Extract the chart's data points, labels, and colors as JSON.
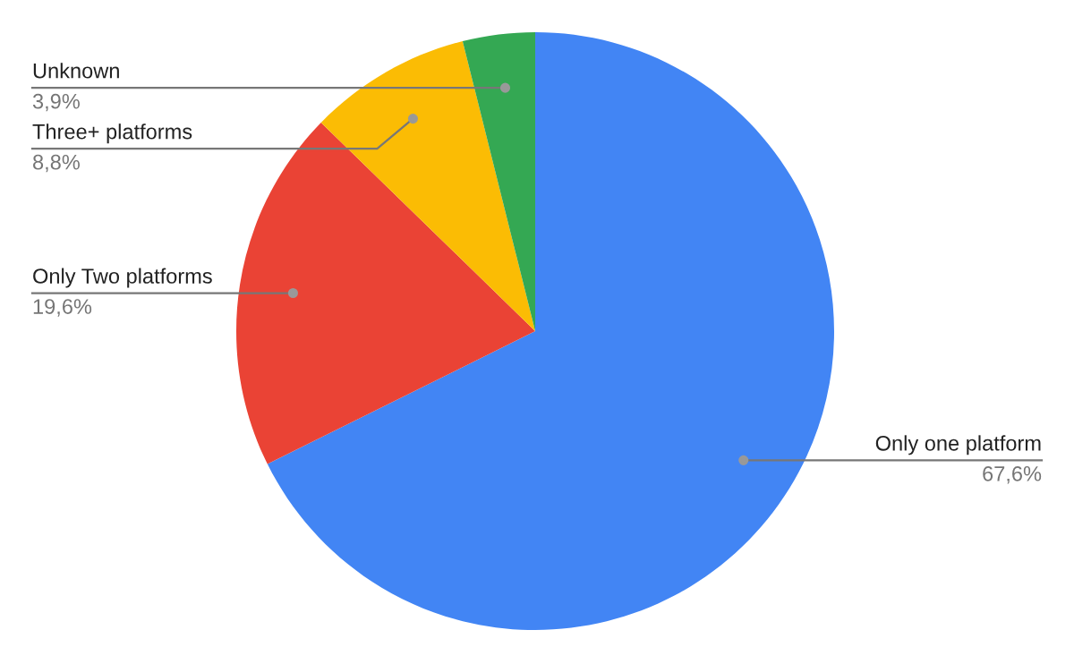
{
  "chart_data": {
    "type": "pie",
    "categories": [
      "Only one platform",
      "Only Two platforms",
      "Three+ platforms",
      "Unknown"
    ],
    "values": [
      67.6,
      19.6,
      8.8,
      3.9
    ],
    "colors": [
      "#4285f4",
      "#ea4335",
      "#fbbc04",
      "#34a853"
    ],
    "value_labels": [
      "67,6%",
      "19,6%",
      "8,8%",
      "3,9%"
    ]
  }
}
